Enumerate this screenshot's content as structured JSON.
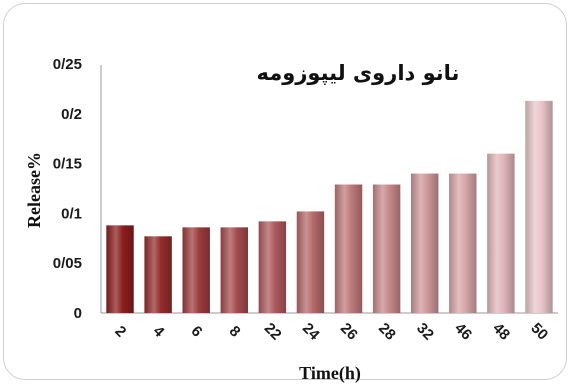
{
  "chart_data": {
    "type": "bar",
    "title": "نانو داروی لیپوزومه",
    "xlabel": "Time(h)",
    "ylabel": "Release%",
    "categories": [
      "2",
      "4",
      "6",
      "8",
      "22",
      "24",
      "26",
      "28",
      "32",
      "46",
      "48",
      "50"
    ],
    "values": [
      0.088,
      0.077,
      0.086,
      0.086,
      0.092,
      0.102,
      0.129,
      0.129,
      0.14,
      0.14,
      0.16,
      0.213
    ],
    "ylim": [
      0,
      0.25
    ],
    "yticks": [
      "0",
      "0/05",
      "0/1",
      "0/15",
      "0/2",
      "0/25"
    ],
    "grid": false,
    "bar_color_dark": "#8b1e1e",
    "bar_color_light": "#e8c4c8"
  }
}
